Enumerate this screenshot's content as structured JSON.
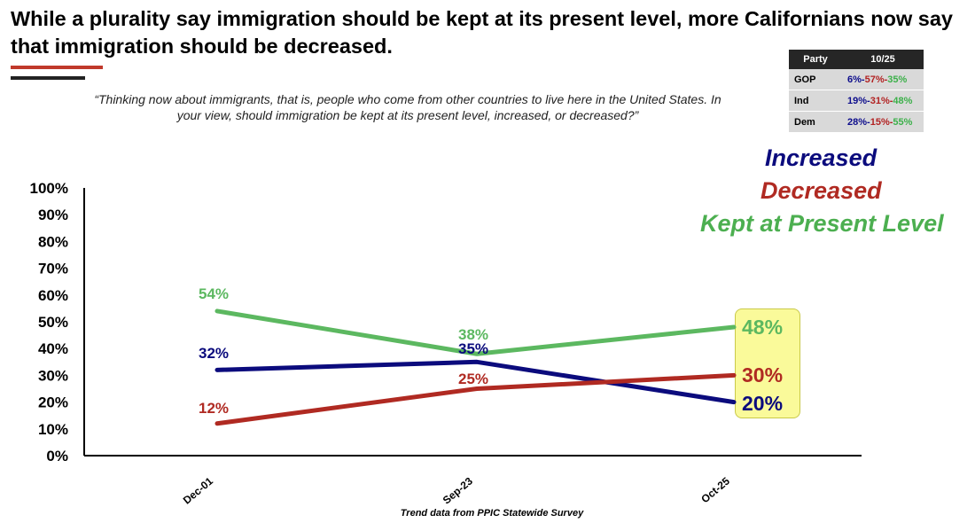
{
  "header": {
    "title": "While a plurality say immigration should be kept at its present level, more Californians now say that immigration should be decreased.",
    "question": "“Thinking now about immigrants, that is, people who come from other countries to live here in the United States. In your view, should immigration be kept at its present level, increased, or decreased?”"
  },
  "party_table": {
    "headers": [
      "Party",
      "10/25"
    ],
    "rows": [
      {
        "party": "GOP",
        "inc": "6%",
        "dec": "57%",
        "kept": "35%"
      },
      {
        "party": "Ind",
        "inc": "19%",
        "dec": "31%",
        "kept": "48%"
      },
      {
        "party": "Dem",
        "inc": "28%",
        "dec": "15%",
        "kept": "55%"
      }
    ],
    "sep": "-"
  },
  "legend": {
    "increased": "Increased",
    "decreased": "Decreased",
    "kept": "Kept at Present Level"
  },
  "footnote": "Trend data from PPIC Statewide Survey",
  "colors": {
    "increased": "#0b0b7d",
    "decreased": "#b02a22",
    "kept": "#5cb860",
    "highlight": "#fafa9a"
  },
  "chart_data": {
    "type": "line",
    "categories": [
      "Dec-01",
      "Sep-23",
      "Oct-25"
    ],
    "y_tick_labels": [
      "0%",
      "10%",
      "20%",
      "30%",
      "40%",
      "50%",
      "60%",
      "70%",
      "80%",
      "90%",
      "100%"
    ],
    "ylim": [
      0,
      100
    ],
    "series": [
      {
        "key": "kept",
        "name": "Kept at Present Level",
        "values": [
          54,
          38,
          48
        ],
        "labels": [
          "54%",
          "38%",
          "48%"
        ]
      },
      {
        "key": "increased",
        "name": "Increased",
        "values": [
          32,
          35,
          20
        ],
        "labels": [
          "32%",
          "35%",
          "20%"
        ]
      },
      {
        "key": "decreased",
        "name": "Decreased",
        "values": [
          12,
          25,
          30
        ],
        "labels": [
          "12%",
          "25%",
          "30%"
        ]
      }
    ]
  }
}
